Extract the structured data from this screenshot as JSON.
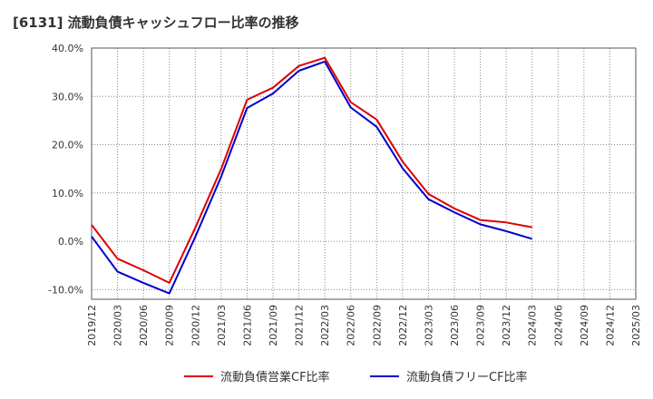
{
  "chart_data": {
    "type": "line",
    "title": "[6131]  流動負債キャッシュフロー比率の推移",
    "xlabel": "",
    "ylabel": "",
    "x": [
      "2019/12",
      "2020/03",
      "2020/06",
      "2020/09",
      "2020/12",
      "2021/03",
      "2021/06",
      "2021/09",
      "2021/12",
      "2022/03",
      "2022/06",
      "2022/09",
      "2022/12",
      "2023/03",
      "2023/06",
      "2023/09",
      "2023/12",
      "2024/03",
      "2024/06",
      "2024/09",
      "2024/12",
      "2025/03"
    ],
    "ylim": [
      -12,
      40
    ],
    "yticks": [
      -10,
      0,
      10,
      20,
      30,
      40
    ],
    "ytick_labels": [
      "-10.0%",
      "0.0%",
      "10.0%",
      "20.0%",
      "30.0%",
      "40.0%"
    ],
    "grid": true,
    "legend_position": "bottom",
    "series": [
      {
        "name": "流動負債営業CF比率",
        "color": "#dd0000",
        "values": [
          3.4,
          -3.6,
          -6.0,
          -8.6,
          2.8,
          15.0,
          29.3,
          31.8,
          36.3,
          38.0,
          28.8,
          25.2,
          16.5,
          9.8,
          6.8,
          4.4,
          3.9,
          2.9,
          null,
          null,
          null,
          null
        ]
      },
      {
        "name": "流動負債フリーCF比率",
        "color": "#0000cc",
        "values": [
          1.0,
          -6.3,
          -8.6,
          -10.8,
          0.9,
          13.4,
          27.6,
          30.6,
          35.3,
          37.2,
          27.7,
          23.7,
          15.1,
          8.7,
          6.0,
          3.5,
          2.1,
          0.5,
          null,
          null,
          null,
          null
        ]
      }
    ]
  }
}
